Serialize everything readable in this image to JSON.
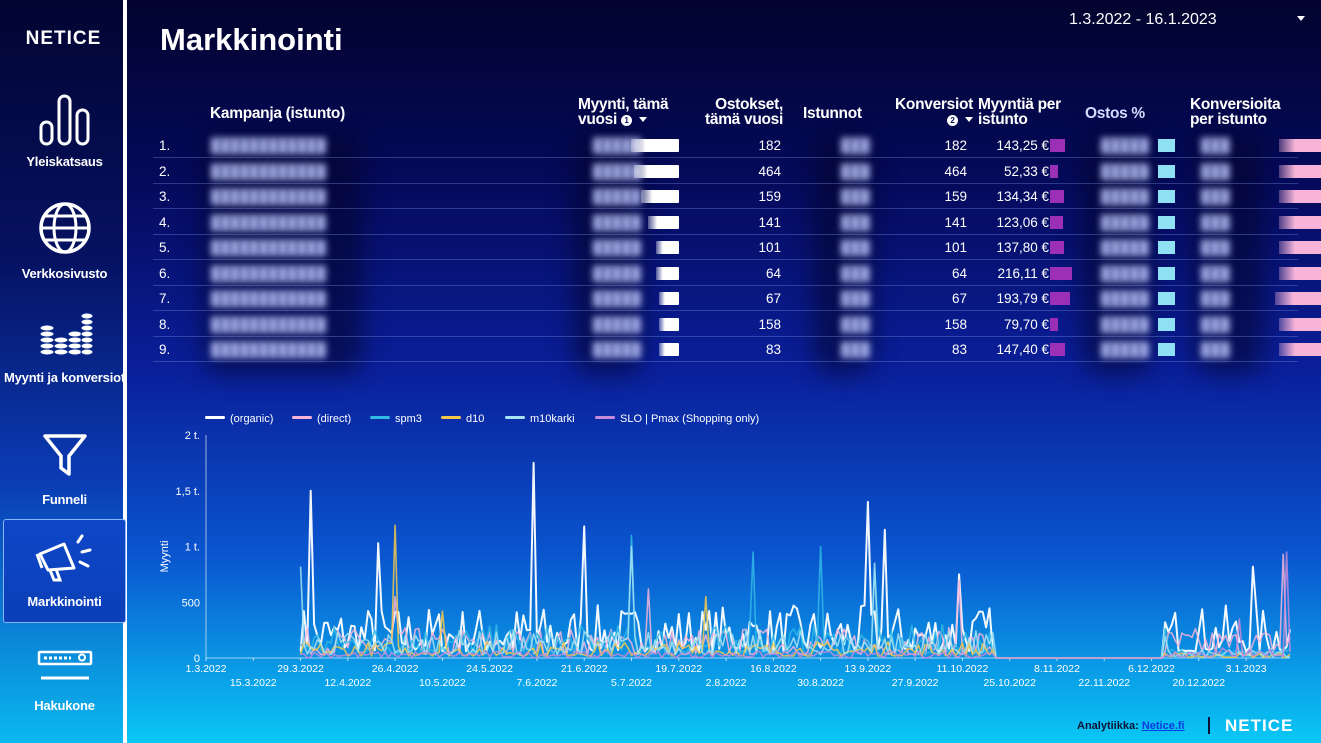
{
  "brand": "NETICE",
  "sidebar": {
    "items": [
      {
        "label": "Yleiskatsaus",
        "icon": "bar-chart-icon"
      },
      {
        "label": "Verkkosivusto",
        "icon": "globe-icon"
      },
      {
        "label": "Myynti ja konversiot",
        "icon": "coin-stacks-icon"
      },
      {
        "label": "Funneli",
        "icon": "funnel-icon"
      },
      {
        "label": "Markkinointi",
        "icon": "megaphone-icon",
        "active": true
      },
      {
        "label": "Hakukone",
        "icon": "search-bar-icon"
      }
    ]
  },
  "header": {
    "title": "Markkinointi",
    "date_range": "1.3.2022 - 16.1.2023"
  },
  "table": {
    "columns": {
      "campaign": "Kampanja (istunto)",
      "sales": "Myynti, tämä vuosi",
      "sales_info": "1",
      "purchases": "Ostokset, tämä vuosi",
      "sessions": "Istunnot",
      "conversions": "Konversiot",
      "conversions_info": "2",
      "sales_per_session": "Myyntiä per istunto",
      "purchase_pct": "Ostos %",
      "conv_per_session": "Konversioita per istunto"
    },
    "rows": [
      {
        "rank": "1.",
        "purchases": "182",
        "conversions": "182",
        "sales_per_session": "143,25 €",
        "sps_value": 143.25,
        "sales_fill": 1.0
      },
      {
        "rank": "2.",
        "purchases": "464",
        "conversions": "464",
        "sales_per_session": "52,33 €",
        "sps_value": 52.33,
        "sales_fill": 0.93
      },
      {
        "rank": "3.",
        "purchases": "159",
        "conversions": "159",
        "sales_per_session": "134,34 €",
        "sps_value": 134.34,
        "sales_fill": 0.79
      },
      {
        "rank": "4.",
        "purchases": "141",
        "conversions": "141",
        "sales_per_session": "123,06 €",
        "sps_value": 123.06,
        "sales_fill": 0.65
      },
      {
        "rank": "5.",
        "purchases": "101",
        "conversions": "101",
        "sales_per_session": "137,80 €",
        "sps_value": 137.8,
        "sales_fill": 0.48
      },
      {
        "rank": "6.",
        "purchases": "64",
        "conversions": "64",
        "sales_per_session": "216,11 €",
        "sps_value": 216.11,
        "sales_fill": 0.48
      },
      {
        "rank": "7.",
        "purchases": "67",
        "conversions": "67",
        "sales_per_session": "193,79 €",
        "sps_value": 193.79,
        "sales_fill": 0.41
      },
      {
        "rank": "8.",
        "purchases": "158",
        "conversions": "158",
        "sales_per_session": "79,70 €",
        "sps_value": 79.7,
        "sales_fill": 0.41
      },
      {
        "rank": "9.",
        "purchases": "83",
        "conversions": "83",
        "sales_per_session": "147,40 €",
        "sps_value": 147.4,
        "sales_fill": 0.41
      }
    ]
  },
  "chart_data": {
    "type": "line",
    "ylabel": "Myynti",
    "ylim": [
      0,
      2000
    ],
    "y_ticks": [
      {
        "value": 0,
        "label": "0"
      },
      {
        "value": 500,
        "label": "500"
      },
      {
        "value": 1000,
        "label": "1 t."
      },
      {
        "value": 1500,
        "label": "1,5 t."
      },
      {
        "value": 2000,
        "label": "2 t."
      }
    ],
    "x_start": "1.3.2022",
    "x_end": "16.1.2023",
    "x_ticks": [
      "1.3.2022",
      "15.3.2022",
      "29.3.2022",
      "12.4.2022",
      "26.4.2022",
      "10.5.2022",
      "24.5.2022",
      "7.6.2022",
      "21.6.2022",
      "5.7.2022",
      "19.7.2022",
      "2.8.2022",
      "16.8.2022",
      "30.8.2022",
      "13.9.2022",
      "27.9.2022",
      "11.10.2022",
      "25.10.2022",
      "8.11.2022",
      "22.11.2022",
      "6.12.2022",
      "20.12.2022",
      "3.1.2023"
    ],
    "legend_position": "top-left",
    "series": [
      {
        "name": "(organic)",
        "color": "#ffffff",
        "peaks": [
          [
            "1.4.2022",
            1500
          ],
          [
            "21.4.2022",
            1030
          ],
          [
            "6.6.2022",
            1750
          ],
          [
            "21.6.2022",
            1180
          ],
          [
            "13.9.2022",
            1400
          ],
          [
            "18.9.2022",
            1150
          ],
          [
            "10.10.2022",
            750
          ],
          [
            "5.1.2023",
            820
          ]
        ]
      },
      {
        "name": "(direct)",
        "color": "#f7b4d8",
        "peaks": [
          [
            "26.4.2022",
            550
          ],
          [
            "10.7.2022",
            620
          ],
          [
            "10.10.2022",
            700
          ],
          [
            "14.1.2023",
            930
          ]
        ]
      },
      {
        "name": "spm3",
        "color": "#31b9e6",
        "peaks": [
          [
            "5.7.2022",
            1100
          ],
          [
            "10.8.2022",
            950
          ],
          [
            "30.8.2022",
            1000
          ],
          [
            "15.9.2022",
            800
          ]
        ]
      },
      {
        "name": "d10",
        "color": "#f5c84c",
        "peaks": [
          [
            "26.4.2022",
            1190
          ],
          [
            "10.5.2022",
            420
          ],
          [
            "27.7.2022",
            550
          ]
        ]
      },
      {
        "name": "m10karki",
        "color": "#a7e3f3",
        "peaks": [
          [
            "29.3.2022",
            820
          ],
          [
            "5.7.2022",
            1000
          ],
          [
            "15.9.2022",
            850
          ]
        ]
      },
      {
        "name": "SLO | Pmax (Shopping only)",
        "color": "#c58ad8",
        "peaks": [
          [
            "1.1.2023",
            350
          ],
          [
            "15.1.2023",
            950
          ]
        ]
      }
    ]
  },
  "footer": {
    "label": "Analytiikka:",
    "link": "Netice.fi",
    "brand": "NETICE"
  }
}
